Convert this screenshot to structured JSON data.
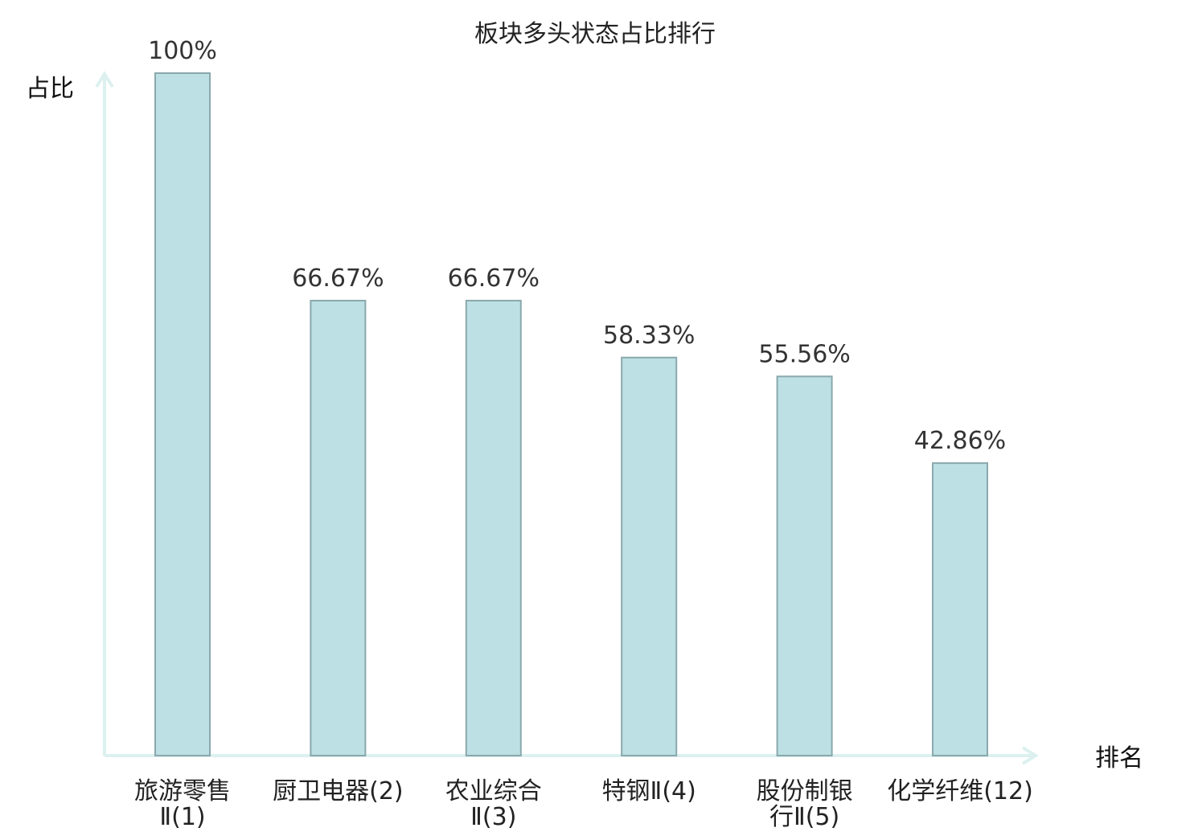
{
  "chart_data": {
    "type": "bar",
    "title": "板块多头状态占比排行",
    "ylabel": "占比",
    "xlabel": "排名",
    "ylim": [
      0,
      100
    ],
    "highlight_color": "#e02020",
    "bar_color": "#bce0e3",
    "categories": [
      {
        "line1": "旅游零售",
        "line2": "Ⅱ(1)",
        "highlight": false
      },
      {
        "line1": "厨卫电器(2)",
        "line2": "",
        "highlight": false
      },
      {
        "line1": "农业综合",
        "line2": "Ⅱ(3)",
        "highlight": false
      },
      {
        "line1": "特钢Ⅱ(4)",
        "line2": "",
        "highlight": false
      },
      {
        "line1": "股份制银",
        "line2": "行Ⅱ(5)",
        "highlight": false
      },
      {
        "line1": "化学纤维(12)",
        "line2": "",
        "highlight": true
      }
    ],
    "values": [
      100,
      66.67,
      66.67,
      58.33,
      55.56,
      42.86
    ],
    "value_labels": [
      "100%",
      "66.67%",
      "66.67%",
      "58.33%",
      "55.56%",
      "42.86%"
    ]
  }
}
